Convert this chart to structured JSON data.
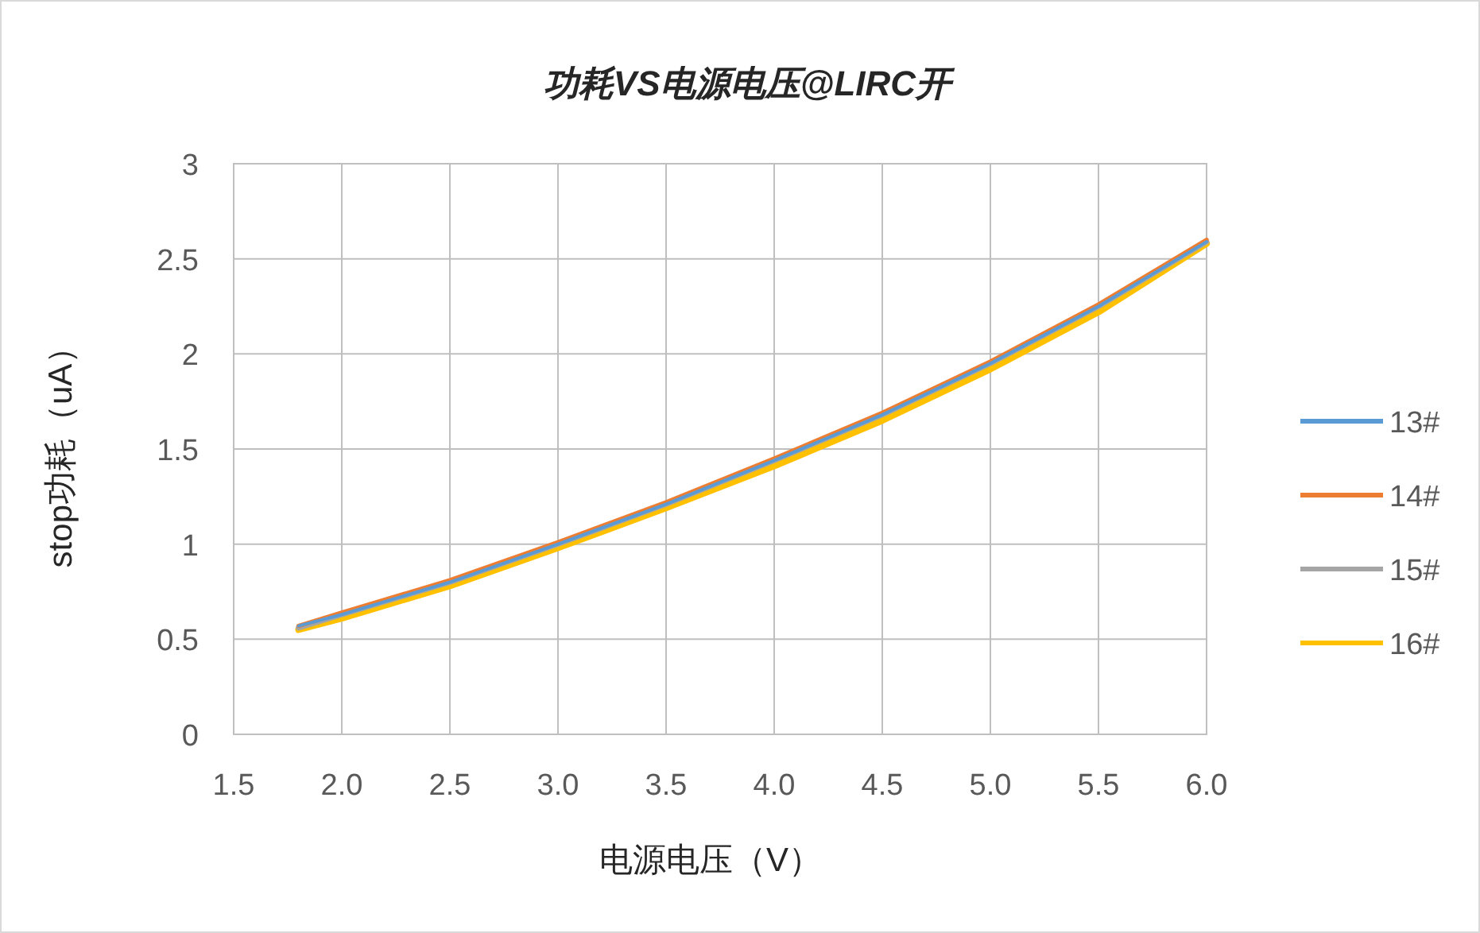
{
  "chart_data": {
    "type": "line",
    "title": "功耗VS电源电压@LIRC开",
    "xlabel": "电源电压（V）",
    "ylabel": "stop功耗（uA）",
    "x": [
      1.8,
      2.0,
      2.5,
      3.0,
      3.5,
      4.0,
      4.5,
      5.0,
      5.5,
      6.0
    ],
    "series": [
      {
        "name": "13#",
        "color": "#5b9bd5",
        "values": [
          0.57,
          0.63,
          0.8,
          1.0,
          1.21,
          1.44,
          1.68,
          1.95,
          2.25,
          2.59
        ]
      },
      {
        "name": "14#",
        "color": "#ed7d31",
        "values": [
          0.57,
          0.64,
          0.81,
          1.01,
          1.22,
          1.45,
          1.69,
          1.96,
          2.26,
          2.6
        ]
      },
      {
        "name": "15#",
        "color": "#a5a5a5",
        "values": [
          0.56,
          0.63,
          0.8,
          1.0,
          1.21,
          1.44,
          1.68,
          1.95,
          2.25,
          2.59
        ]
      },
      {
        "name": "16#",
        "color": "#ffc000",
        "values": [
          0.55,
          0.61,
          0.78,
          0.98,
          1.19,
          1.41,
          1.65,
          1.92,
          2.22,
          2.58
        ]
      }
    ],
    "xlim": [
      1.5,
      6.0
    ],
    "ylim": [
      0,
      3
    ],
    "xticks": [
      1.5,
      {
        "value": 2,
        "label": "2.0"
      },
      2.5,
      {
        "value": 3,
        "label": "3.0"
      },
      3.5,
      {
        "value": 4,
        "label": "4.0"
      },
      4.5,
      {
        "value": 5,
        "label": "5.0"
      },
      5.5,
      {
        "value": 6,
        "label": "6.0"
      }
    ],
    "yticks": [
      0,
      0.5,
      1,
      1.5,
      2,
      2.5,
      3
    ],
    "grid": true,
    "legend": "right"
  }
}
